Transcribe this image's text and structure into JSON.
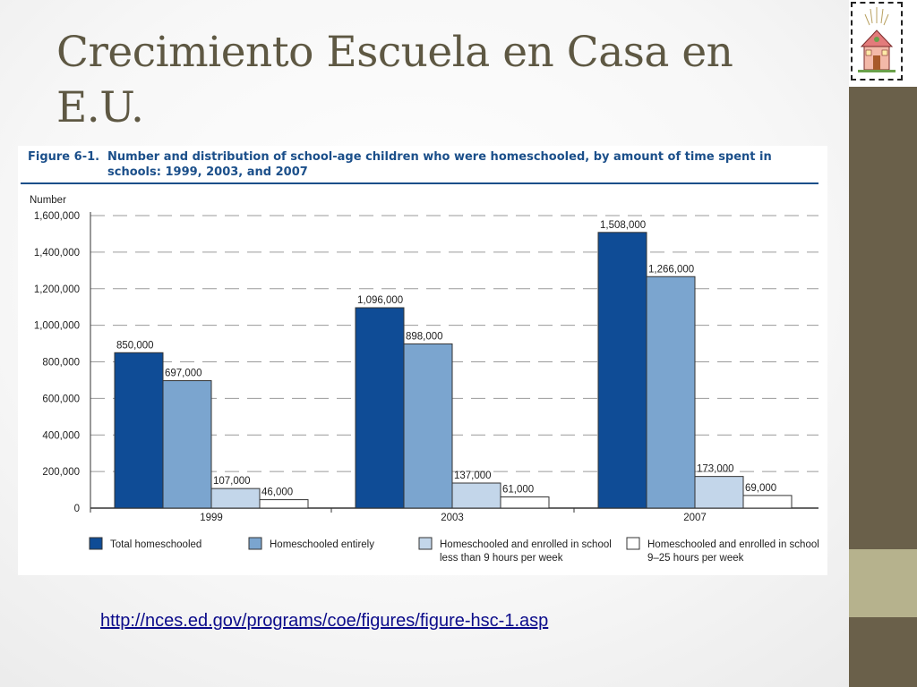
{
  "slide": {
    "title": "Crecimiento Escuela en Casa en E.U.",
    "link": "http://nces.ed.gov/programs/coe/figures/figure-hsc-1.asp"
  },
  "figure": {
    "number": "Figure 6-1.",
    "caption": "Number and distribution of school-age children who were homeschooled, by amount of time spent in schools: 1999, 2003, and 2007"
  },
  "colors": {
    "title": "#5e5843",
    "sidebar": "#6a604a",
    "sidebar_band": "#b6b28d",
    "caption": "#1b4f8a"
  },
  "chart_data": {
    "type": "bar",
    "categories": [
      "1999",
      "2003",
      "2007"
    ],
    "ylabel": "Number",
    "ylim": [
      0,
      1600000
    ],
    "yticks": [
      "0",
      "200,000",
      "400,000",
      "600,000",
      "800,000",
      "1,000,000",
      "1,200,000",
      "1,400,000",
      "1,600,000"
    ],
    "grid": true,
    "legend_position": "bottom",
    "series": [
      {
        "name": "Total homeschooled",
        "color": "#0f4c96",
        "values": [
          850000,
          1096000,
          1508000
        ],
        "labels": [
          "850,000",
          "1,096,000",
          "1,508,000"
        ]
      },
      {
        "name": "Homeschooled entirely",
        "color": "#7ba5cf",
        "values": [
          697000,
          898000,
          1266000
        ],
        "labels": [
          "697,000",
          "898,000",
          "1,266,000"
        ]
      },
      {
        "name": "Homeschooled and enrolled in school less than 9 hours per week",
        "color": "#c3d6ea",
        "values": [
          107000,
          137000,
          173000
        ],
        "labels": [
          "107,000",
          "137,000",
          "173,000"
        ]
      },
      {
        "name": "Homeschooled and enrolled in school 9–25 hours per week",
        "color": "#ffffff",
        "values": [
          46000,
          61000,
          69000
        ],
        "labels": [
          "46,000",
          "61,000",
          "69,000"
        ]
      }
    ]
  }
}
